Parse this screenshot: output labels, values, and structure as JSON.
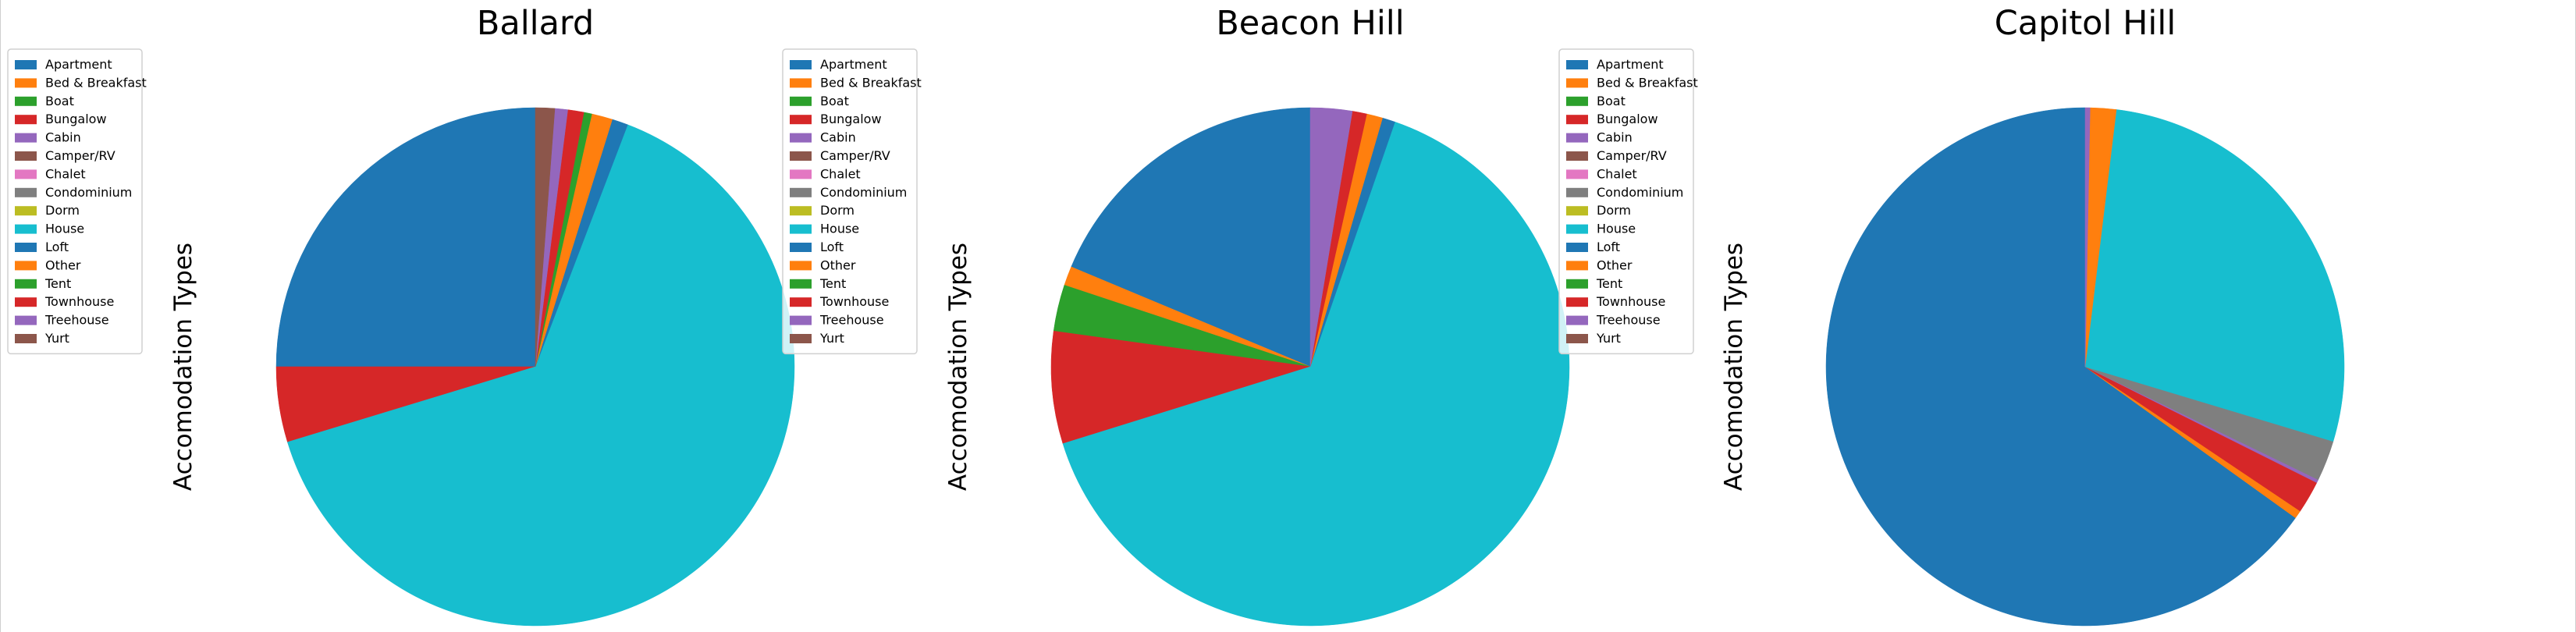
{
  "colors": [
    "#1f77b4",
    "#ff7f0e",
    "#2ca02c",
    "#d62728",
    "#9467bd",
    "#8c564b",
    "#e377c2",
    "#7f7f7f",
    "#bcbd22",
    "#17becf",
    "#1f77b4",
    "#ff7f0e",
    "#2ca02c",
    "#d62728",
    "#9467bd",
    "#8c564b"
  ],
  "chart_data": [
    {
      "type": "pie",
      "title": "Ballard",
      "ylabel": "Accomodation Types",
      "legend_placement": "upper-left-outside",
      "startangle": 90,
      "categories": [
        "Apartment",
        "Bed & Breakfast",
        "Boat",
        "Bungalow",
        "Cabin",
        "Camper/RV",
        "Chalet",
        "Condominium",
        "Dorm",
        "House",
        "Loft",
        "Other",
        "Tent",
        "Townhouse",
        "Treehouse",
        "Yurt"
      ],
      "values": [
        25.0,
        0.0,
        0.0,
        4.7,
        0.0,
        0.0,
        0.0,
        0.0,
        0.0,
        64.5,
        1.0,
        1.3,
        0.5,
        1.0,
        0.8,
        1.2
      ]
    },
    {
      "type": "pie",
      "title": "Beacon Hill",
      "ylabel": "Accomodation Types",
      "legend_placement": "upper-left-outside",
      "startangle": 90,
      "categories": [
        "Apartment",
        "Bed & Breakfast",
        "Boat",
        "Bungalow",
        "Cabin",
        "Camper/RV",
        "Chalet",
        "Condominium",
        "Dorm",
        "House",
        "Loft",
        "Other",
        "Tent",
        "Townhouse",
        "Treehouse",
        "Yurt"
      ],
      "values": [
        18.7,
        1.2,
        2.9,
        7.0,
        0.0,
        0.0,
        0.0,
        0.0,
        0.0,
        64.9,
        0.8,
        1.0,
        0.0,
        0.9,
        2.6,
        0.0
      ]
    },
    {
      "type": "pie",
      "title": "Capitol Hill",
      "ylabel": "Accomodation Types",
      "legend_placement": "upper-left-outside",
      "startangle": 90,
      "categories": [
        "Apartment",
        "Bed & Breakfast",
        "Boat",
        "Bungalow",
        "Cabin",
        "Camper/RV",
        "Chalet",
        "Condominium",
        "Dorm",
        "House",
        "Loft",
        "Other",
        "Tent",
        "Townhouse",
        "Treehouse",
        "Yurt"
      ],
      "values": [
        64.3,
        0.5,
        0.0,
        2.0,
        0.2,
        0.0,
        0.0,
        2.5,
        0.0,
        27.4,
        0.0,
        1.6,
        0.0,
        0.0,
        0.3,
        0.0
      ]
    }
  ]
}
